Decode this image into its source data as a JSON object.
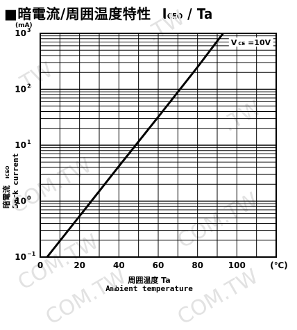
{
  "title": {
    "main": "■暗電流/周囲温度特性",
    "symbol": "ICEO / Ta",
    "symbol_main": "I",
    "symbol_sub": "CEO",
    "symbol_rest": " / Ta"
  },
  "watermarks": [
    ".TW",
    ".TW",
    ".TW",
    "COM.TW",
    "COM.TW",
    "COM.TW",
    "COM.TW",
    "COM.TW"
  ],
  "chart_data": {
    "type": "line",
    "title": "暗電流/周囲温度特性 ICEO / Ta",
    "y_unit": "(mA)",
    "ylabel_jp": "暗電流",
    "ylabel_sym": "ICEO",
    "ylabel_en": "Dark current",
    "xlabel_jp": "周囲温度 Ta",
    "xlabel_en": "Ambient temperature",
    "x_unit": "(℃)",
    "yscale": "log",
    "xlim": [
      0,
      120
    ],
    "ylim": [
      0.1,
      1000
    ],
    "x_ticks": [
      0,
      20,
      40,
      60,
      80,
      100
    ],
    "x_tick_labels": [
      "0",
      "20",
      "40",
      "60",
      "80",
      "100"
    ],
    "y_ticks": [
      {
        "value": 0.1,
        "base": "10",
        "exp": "−1"
      },
      {
        "value": 1,
        "base": "10",
        "exp": "0"
      },
      {
        "value": 10,
        "base": "10",
        "exp": "1"
      },
      {
        "value": 100,
        "base": "10",
        "exp": "2"
      },
      {
        "value": 1000,
        "base": "10",
        "exp": "3"
      }
    ],
    "grid": true,
    "series": [
      {
        "name": "VCE =10V",
        "x": [
          3.5,
          20,
          40,
          60,
          80,
          93
        ],
        "y": [
          0.1,
          0.54,
          4.2,
          32,
          250,
          1000
        ]
      }
    ],
    "annotation": {
      "text": "V",
      "sub": "CE",
      "rest": " =10V"
    }
  }
}
